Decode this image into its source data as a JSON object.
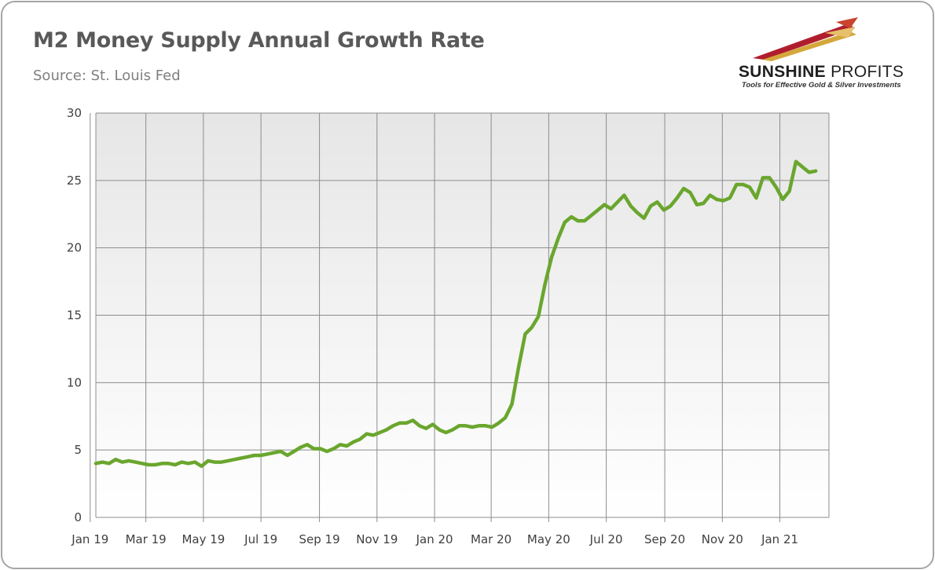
{
  "header": {
    "title": "M2 Money Supply Annual Growth Rate",
    "subtitle": "Source: St. Louis Fed"
  },
  "logo": {
    "name_bold": "SUNSHINE",
    "name_light": "PROFITS",
    "tagline": "Tools for Effective Gold & Silver Investments"
  },
  "colors": {
    "line": "#6aa62e",
    "plot_bg_top": "#e6e6e6",
    "plot_bg_bottom": "#ffffff",
    "grid": "#8c8c8c"
  },
  "chart_data": {
    "type": "line",
    "title": "M2 Money Supply Annual Growth Rate",
    "xlabel": "",
    "ylabel": "",
    "ylim": [
      0,
      30
    ],
    "yticks": [
      0,
      5,
      10,
      15,
      20,
      25,
      30
    ],
    "grid": true,
    "legend": "none",
    "x_tick_labels": [
      "Jan 19",
      "Mar 19",
      "May 19",
      "Jul 19",
      "Sep 19",
      "Nov 19",
      "Jan 20",
      "Mar 20",
      "May 20",
      "Jul 20",
      "Sep 20",
      "Nov 20",
      "Jan 21"
    ],
    "x_range": [
      "2019-01-07",
      "2021-02-22"
    ],
    "series": [
      {
        "frequency": "weekly",
        "start": "2019-01-07",
        "values": [
          4.0,
          4.1,
          4.0,
          4.3,
          4.1,
          4.2,
          4.1,
          4.0,
          3.9,
          3.9,
          4.0,
          4.0,
          3.9,
          4.1,
          4.0,
          4.1,
          3.8,
          4.2,
          4.1,
          4.1,
          4.2,
          4.3,
          4.4,
          4.5,
          4.6,
          4.6,
          4.7,
          4.8,
          4.9,
          4.6,
          4.9,
          5.2,
          5.4,
          5.1,
          5.1,
          4.9,
          5.1,
          5.4,
          5.3,
          5.6,
          5.8,
          6.2,
          6.1,
          6.3,
          6.5,
          6.8,
          7.0,
          7.0,
          7.2,
          6.8,
          6.6,
          6.9,
          6.5,
          6.3,
          6.5,
          6.8,
          6.8,
          6.7,
          6.8,
          6.8,
          6.7,
          7.0,
          7.4,
          8.4,
          11.1,
          13.6,
          14.1,
          14.9,
          17.3,
          19.3,
          20.7,
          21.9,
          22.3,
          22.0,
          22.0,
          22.4,
          22.8,
          23.2,
          22.9,
          23.4,
          23.9,
          23.1,
          22.6,
          22.2,
          23.1,
          23.4,
          22.8,
          23.1,
          23.7,
          24.4,
          24.1,
          23.2,
          23.3,
          23.9,
          23.6,
          23.5,
          23.7,
          24.7,
          24.7,
          24.5,
          23.7,
          25.2,
          25.2,
          24.5,
          23.6,
          24.2,
          26.4,
          26.0,
          25.6,
          25.7
        ]
      }
    ]
  }
}
